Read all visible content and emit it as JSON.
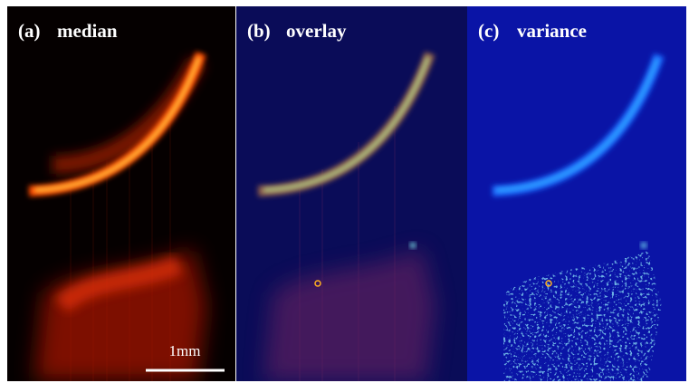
{
  "panels": [
    {
      "label": "(a)",
      "title": "median"
    },
    {
      "label": "(b)",
      "title": "overlay"
    },
    {
      "label": "(c)",
      "title": "variance"
    }
  ],
  "scale_bar": {
    "label": "1mm"
  }
}
